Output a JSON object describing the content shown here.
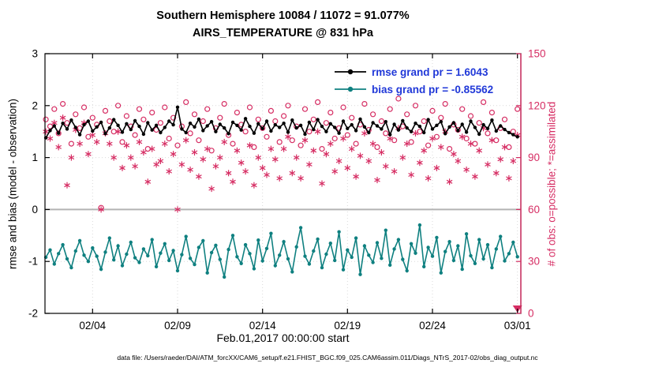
{
  "figure": {
    "title_line1": "Southern Hemisphere 10084 / 11072 = 91.077%",
    "title_line2": "AIRS_TEMPERATURE @ 831 hPa",
    "xlabel": "Feb.01,2017 00:00:00 start",
    "ylabel_left": "rmse and bias (model - observation)",
    "ylabel_right": "# of obs: o=possible; *=assimilated",
    "footer": "data file: /Users/raeder/DAI/ATM_forcXX/CAM6_setup/f.e21.FHIST_BGC.f09_025.CAM6assim.011/Diags_NTrS_2017-02/obs_diag_output.nc"
  },
  "legend": {
    "rmse": {
      "label": "rmse grand pr = 1.6043",
      "line_color": "#000000"
    },
    "bias": {
      "label": "bias grand pr = -0.85562",
      "line_color": "#0f8080"
    },
    "text_color": "#2038d8"
  },
  "colors": {
    "obs_pink": "#d62d63",
    "bias_teal": "#0f8080",
    "rmse_black": "#000000",
    "legend_text_blue": "#2038d8",
    "zero_line_gray": "#b3b3b3",
    "grid_gray": "#d9d9d9",
    "axis_black": "#000000"
  },
  "chart_data": {
    "type": "line",
    "title": "Southern Hemisphere 10084 / 11072 = 91.077% | AIRS_TEMPERATURE @ 831 hPa",
    "xlabel": "Feb.01,2017 00:00:00 start",
    "ylabel_left": "rmse and bias (model - observation)",
    "ylabel_right": "# of obs: o=possible; *=assimilated",
    "x_start_day": 0.25,
    "x_step_day": 0.25,
    "x_domain_days": [
      0.2,
      28.2
    ],
    "x_ticks": [
      {
        "label": "02/04",
        "day": 3
      },
      {
        "label": "02/09",
        "day": 8
      },
      {
        "label": "02/14",
        "day": 13
      },
      {
        "label": "02/19",
        "day": 18
      },
      {
        "label": "02/24",
        "day": 23
      },
      {
        "label": "03/01",
        "day": 28
      }
    ],
    "ylim_left": [
      -2,
      3
    ],
    "y_ticks_left": [
      -2,
      -1,
      0,
      1,
      2,
      3
    ],
    "ylim_right": [
      0,
      150
    ],
    "y_ticks_right": [
      0,
      30,
      60,
      90,
      120,
      150
    ],
    "zero_reference_left": 0,
    "offscale_marker": {
      "day": 28.0,
      "right_value": 0
    },
    "series": {
      "rmse": [
        1.38,
        1.52,
        1.61,
        1.47,
        1.66,
        1.55,
        1.72,
        1.58,
        1.44,
        1.63,
        1.7,
        1.51,
        1.59,
        1.68,
        1.46,
        1.57,
        1.73,
        1.62,
        1.49,
        1.65,
        1.54,
        1.71,
        1.6,
        1.45,
        1.67,
        1.53,
        1.62,
        1.48,
        1.58,
        1.7,
        1.63,
        1.97,
        1.55,
        1.48,
        1.66,
        1.59,
        1.74,
        1.52,
        1.61,
        1.69,
        1.5,
        1.64,
        1.57,
        1.46,
        1.68,
        1.62,
        1.53,
        1.75,
        1.6,
        1.47,
        1.65,
        1.56,
        1.7,
        1.51,
        1.63,
        1.58,
        1.66,
        1.49,
        1.72,
        1.57,
        1.62,
        1.45,
        1.68,
        1.54,
        1.73,
        1.6,
        1.5,
        1.65,
        1.58,
        1.47,
        1.7,
        1.56,
        1.63,
        1.52,
        1.74,
        1.59,
        1.48,
        1.67,
        1.61,
        1.55,
        1.69,
        1.44,
        1.64,
        1.53,
        1.71,
        1.57,
        1.5,
        1.66,
        1.6,
        1.48,
        1.73,
        1.55,
        1.62,
        1.69,
        1.46,
        1.59,
        1.67,
        1.52,
        1.64,
        1.49,
        1.7,
        1.58,
        1.45,
        1.63,
        1.56,
        1.72,
        1.51,
        1.61,
        1.54,
        1.48,
        1.44,
        1.4
      ],
      "bias": [
        -0.92,
        -0.78,
        -1.05,
        -0.85,
        -0.68,
        -0.95,
        -1.12,
        -0.8,
        -0.6,
        -0.88,
        -1.0,
        -0.74,
        -0.9,
        -1.15,
        -0.82,
        -0.55,
        -0.97,
        -0.7,
        -1.08,
        -0.86,
        -0.63,
        -0.93,
        -1.02,
        -0.76,
        -0.89,
        -0.58,
        -1.1,
        -0.84,
        -0.66,
        -0.98,
        -0.79,
        -1.18,
        -0.87,
        -0.52,
        -0.94,
        -1.06,
        -0.73,
        -0.6,
        -1.22,
        -0.83,
        -0.69,
        -0.96,
        -1.3,
        -0.77,
        -0.5,
        -0.91,
        -1.04,
        -0.68,
        -0.85,
        -1.14,
        -0.59,
        -0.99,
        -0.75,
        -0.46,
        -1.08,
        -0.88,
        -0.62,
        -0.95,
        -1.2,
        -0.72,
        -0.35,
        -0.9,
        -1.05,
        -0.8,
        -0.57,
        -1.12,
        -0.86,
        -0.65,
        -0.98,
        -0.43,
        -1.16,
        -0.78,
        -0.92,
        -0.55,
        -1.25,
        -0.7,
        -0.88,
        -1.02,
        -0.64,
        -0.94,
        -0.4,
        -1.07,
        -0.76,
        -0.58,
        -0.96,
        -1.18,
        -0.66,
        -0.84,
        -0.3,
        -1.1,
        -0.73,
        -0.9,
        -0.54,
        -1.22,
        -0.81,
        -0.62,
        -0.98,
        -0.7,
        -1.15,
        -0.47,
        -0.89,
        -1.04,
        -0.58,
        -0.95,
        -0.68,
        -1.12,
        -0.76,
        -0.52,
        -0.99,
        -0.85,
        -0.63,
        -0.91
      ],
      "possible": [
        112,
        108,
        118,
        104,
        121,
        110,
        98,
        115,
        107,
        119,
        102,
        113,
        109,
        61,
        117,
        111,
        105,
        120,
        99,
        114,
        108,
        103,
        118,
        112,
        95,
        116,
        106,
        110,
        119,
        101,
        113,
        97,
        108,
        122,
        104,
        115,
        100,
        111,
        118,
        94,
        107,
        113,
        121,
        103,
        98,
        116,
        109,
        105,
        119,
        96,
        112,
        107,
        102,
        117,
        111,
        99,
        114,
        120,
        100,
        108,
        97,
        118,
        105,
        112,
        122,
        95,
        110,
        116,
        101,
        107,
        119,
        103,
        113,
        98,
        109,
        121,
        106,
        115,
        96,
        111,
        104,
        118,
        100,
        124,
        108,
        115,
        99,
        120,
        105,
        111,
        97,
        117,
        102,
        113,
        121,
        95,
        109,
        106,
        118,
        101,
        114,
        98,
        110,
        122,
        104,
        116,
        100,
        107,
        112,
        96,
        105,
        118
      ],
      "assimilated": [
        105,
        101,
        110,
        96,
        113,
        74,
        90,
        106,
        98,
        110,
        92,
        103,
        99,
        60,
        104,
        98,
        90,
        105,
        84,
        97,
        90,
        85,
        99,
        93,
        76,
        95,
        86,
        88,
        98,
        82,
        92,
        60,
        86,
        100,
        83,
        93,
        79,
        89,
        95,
        72,
        85,
        90,
        99,
        81,
        76,
        94,
        87,
        82,
        97,
        74,
        90,
        84,
        80,
        95,
        89,
        78,
        95,
        102,
        81,
        90,
        78,
        100,
        86,
        94,
        105,
        75,
        92,
        98,
        82,
        88,
        101,
        84,
        95,
        79,
        91,
        104,
        88,
        98,
        77,
        93,
        85,
        101,
        82,
        107,
        90,
        98,
        80,
        104,
        87,
        94,
        78,
        101,
        84,
        96,
        105,
        76,
        92,
        88,
        102,
        83,
        98,
        79,
        94,
        107,
        86,
        100,
        81,
        89,
        96,
        78,
        88,
        103
      ]
    }
  }
}
